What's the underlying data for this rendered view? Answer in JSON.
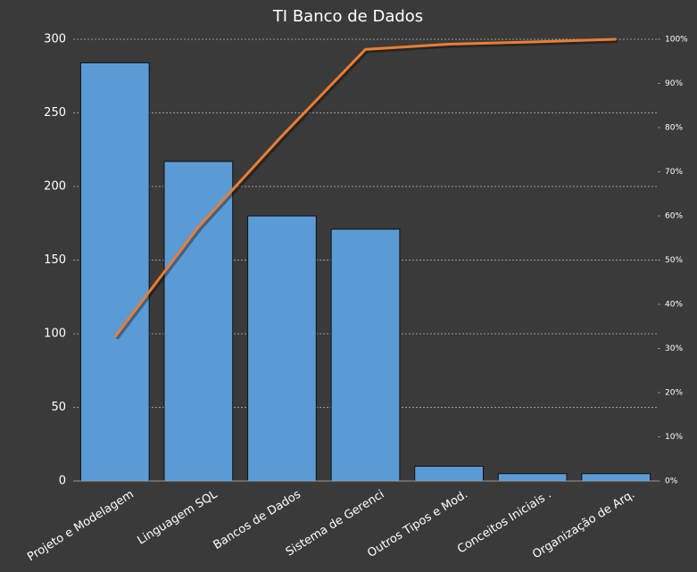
{
  "chart_data": {
    "type": "pareto",
    "title": "TI Banco de Dados",
    "categories": [
      "Projeto e Modelagem",
      "Linguagem SQL",
      "Bancos de Dados",
      "Sistema de Gerenci",
      "Outros Tipos e Mod.",
      "Conceitos Iniciais .",
      "Organização de Arq."
    ],
    "series": [
      {
        "type": "bar",
        "color": "#5b9bd5",
        "values": [
          284,
          217,
          180,
          171,
          10,
          5,
          5
        ]
      },
      {
        "type": "line",
        "color": "#ed7d31",
        "axis": "y2",
        "values": [
          32.6,
          57.5,
          78.1,
          97.7,
          98.9,
          99.4,
          100
        ]
      }
    ],
    "ylim": [
      0,
      300
    ],
    "yticks": [
      0,
      50,
      100,
      150,
      200,
      250,
      300
    ],
    "y2lim": [
      0,
      100
    ],
    "y2ticks": [
      {
        "value": 0,
        "label": "0%"
      },
      {
        "value": 10,
        "label": "10%"
      },
      {
        "value": 20,
        "label": "20%"
      },
      {
        "value": 30,
        "label": "30%"
      },
      {
        "value": 40,
        "label": "40%"
      },
      {
        "value": 50,
        "label": "50%"
      },
      {
        "value": 60,
        "label": "60%"
      },
      {
        "value": 70,
        "label": "70%"
      },
      {
        "value": 80,
        "label": "80%"
      },
      {
        "value": 90,
        "label": "90%"
      },
      {
        "value": 100,
        "label": "100%"
      }
    ],
    "grid": true
  }
}
